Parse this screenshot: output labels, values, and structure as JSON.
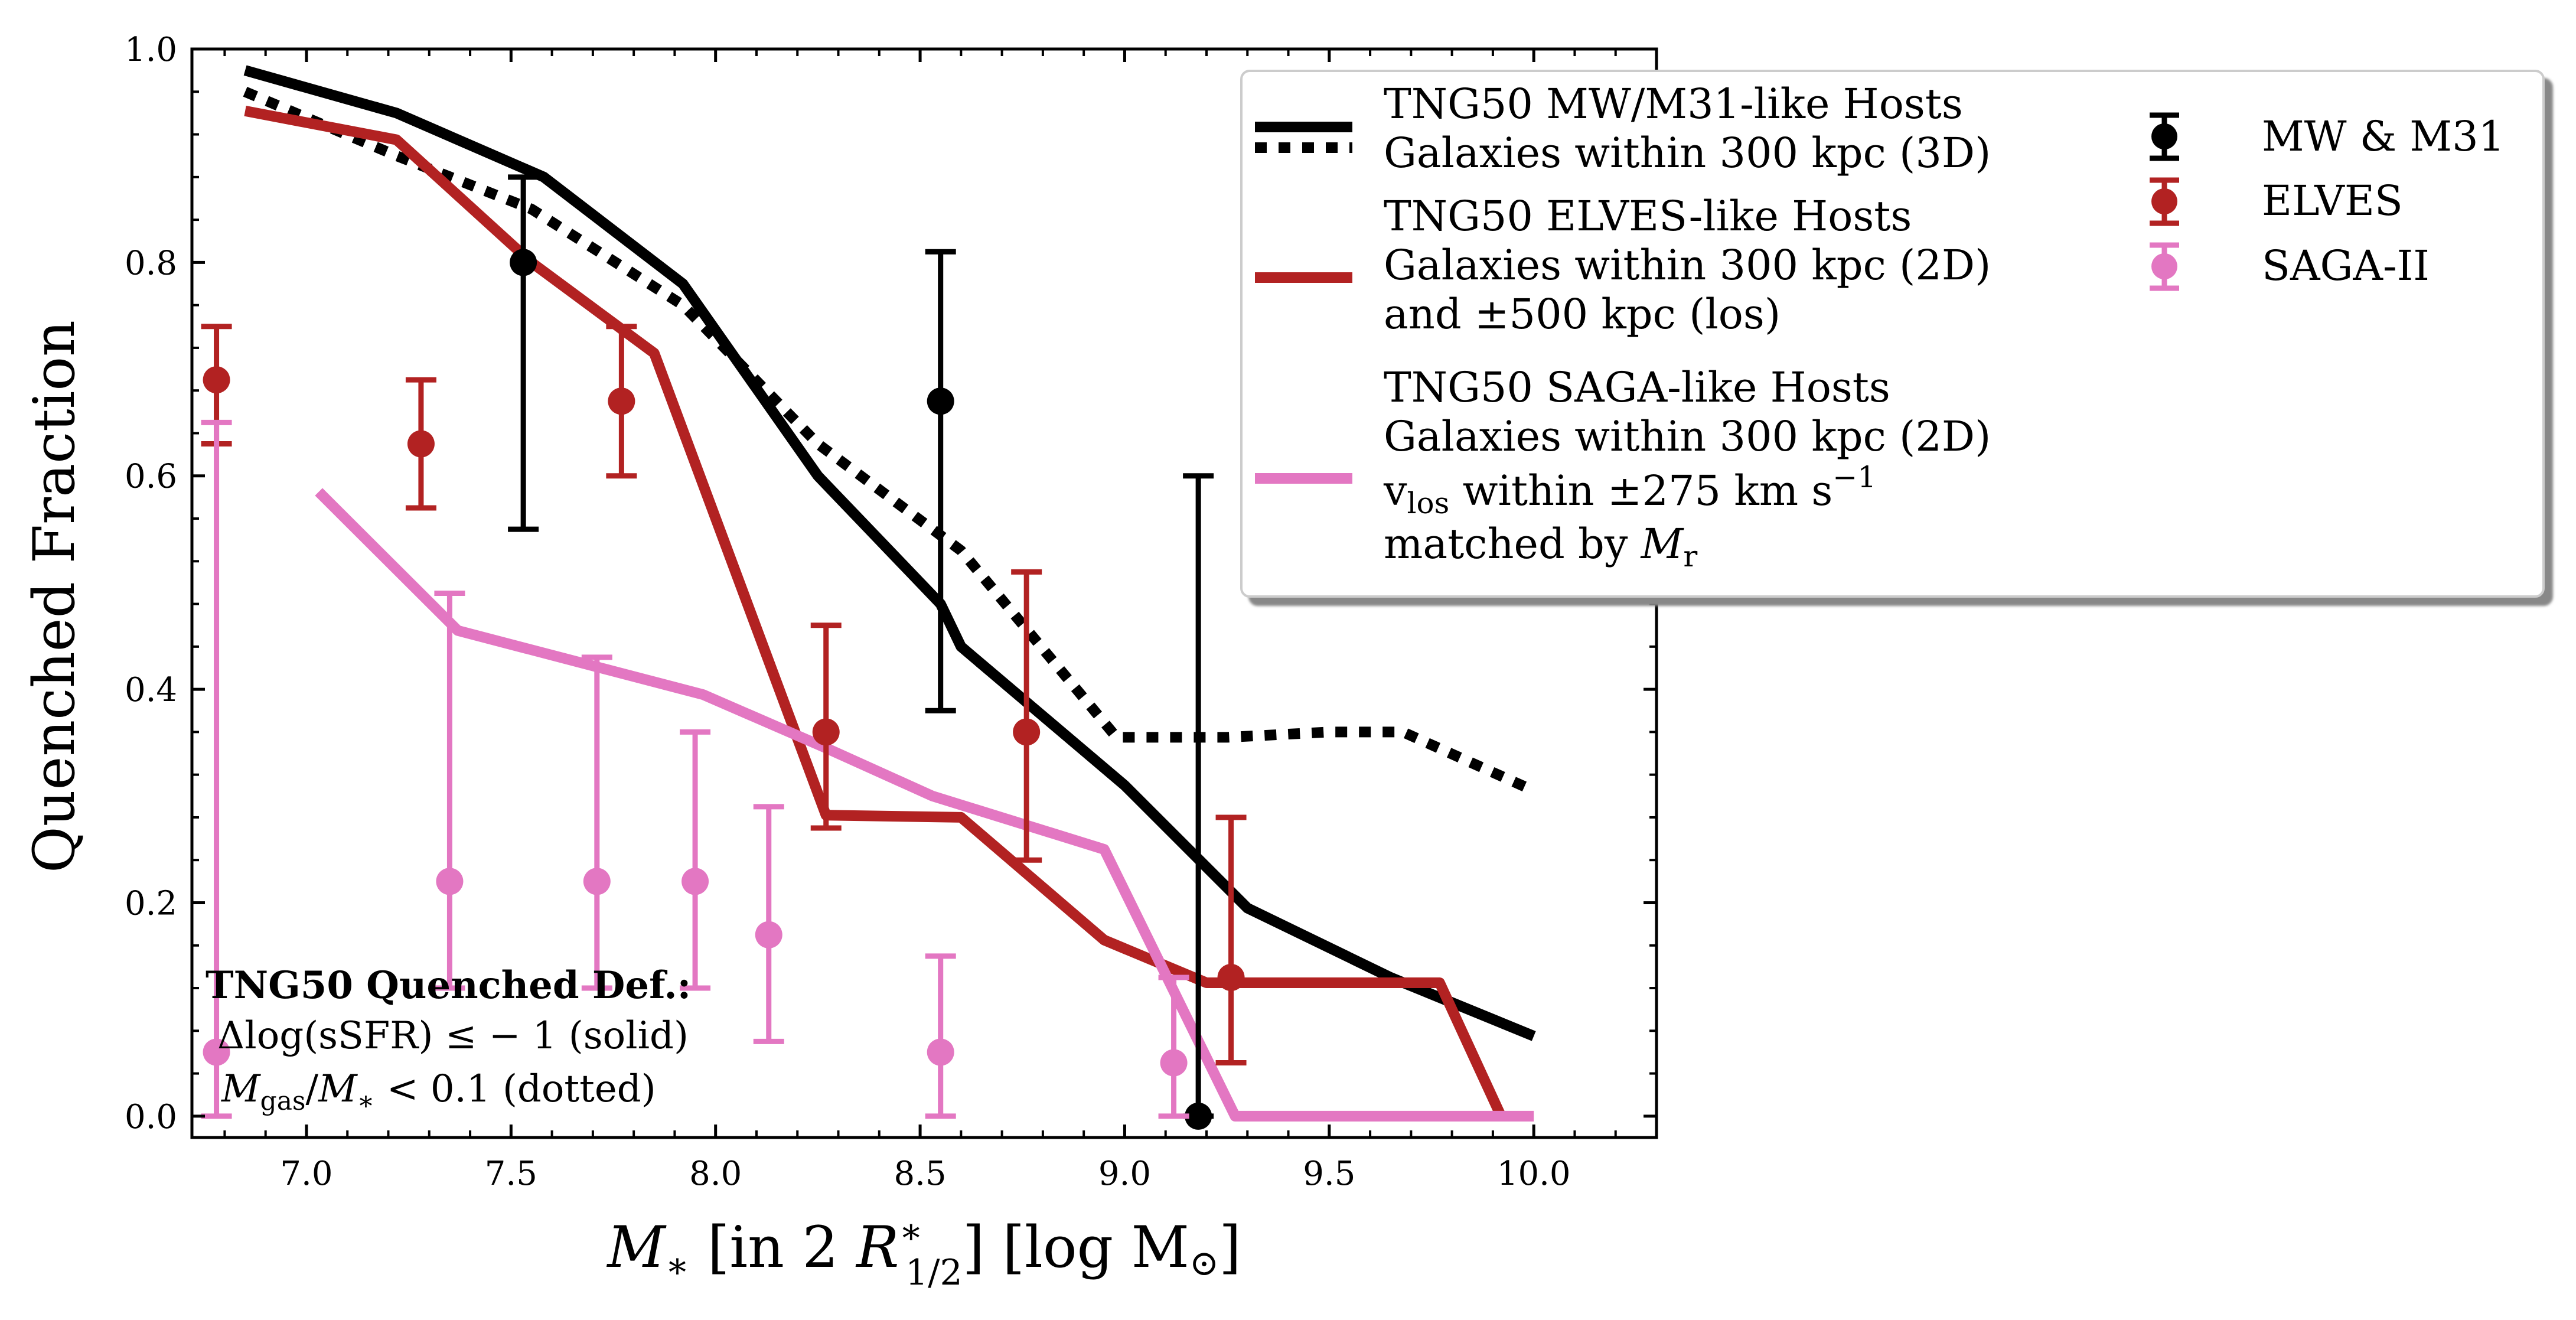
{
  "chart_data": {
    "type": "line",
    "xlabel": "M_* [in 2 R*_1/2] [log M_⊙]",
    "ylabel": "Quenched Fraction",
    "xlim": [
      6.72,
      10.3
    ],
    "ylim": [
      -0.02,
      1.0
    ],
    "x_ticks": [
      7.0,
      7.5,
      8.0,
      8.5,
      9.0,
      9.5,
      10.0
    ],
    "x_tick_labels": [
      "7.0",
      "7.5",
      "8.0",
      "8.5",
      "9.0",
      "9.5",
      "10.0"
    ],
    "y_ticks": [
      0.0,
      0.2,
      0.4,
      0.6,
      0.8,
      1.0
    ],
    "y_tick_labels": [
      "0.0",
      "0.2",
      "0.4",
      "0.6",
      "0.8",
      "1.0"
    ],
    "grid": false,
    "legend_placement": "top-right outside",
    "colors": {
      "black": "#000000",
      "red": "#b22222",
      "pink": "#e377c2"
    },
    "lines": [
      {
        "id": "mw-solid",
        "color": "#000000",
        "style": "solid",
        "x": [
          6.85,
          7.22,
          7.58,
          7.92,
          8.25,
          8.55,
          8.6,
          9.0,
          9.3,
          9.65,
          10.0
        ],
        "y": [
          0.98,
          0.94,
          0.88,
          0.78,
          0.6,
          0.48,
          0.44,
          0.31,
          0.195,
          0.13,
          0.075
        ]
      },
      {
        "id": "mw-dotted",
        "color": "#000000",
        "style": "dotted",
        "x": [
          6.85,
          7.22,
          7.55,
          7.92,
          8.25,
          8.6,
          8.98,
          9.25,
          9.5,
          9.68,
          10.0
        ],
        "y": [
          0.96,
          0.9,
          0.85,
          0.76,
          0.63,
          0.53,
          0.355,
          0.355,
          0.36,
          0.36,
          0.305
        ]
      },
      {
        "id": "elves",
        "color": "#b22222",
        "style": "solid",
        "x": [
          6.85,
          7.22,
          7.55,
          7.85,
          8.27,
          8.6,
          8.95,
          9.2,
          9.77,
          9.92
        ],
        "y": [
          0.942,
          0.915,
          0.8,
          0.715,
          0.282,
          0.28,
          0.165,
          0.125,
          0.125,
          0.0
        ]
      },
      {
        "id": "saga",
        "color": "#e377c2",
        "style": "solid",
        "x": [
          7.03,
          7.37,
          7.97,
          8.27,
          8.53,
          8.95,
          9.27,
          10.0
        ],
        "y": [
          0.585,
          0.455,
          0.395,
          0.345,
          0.3,
          0.25,
          0.0,
          0.0
        ]
      }
    ],
    "points": [
      {
        "id": "mw-m31",
        "color": "#000000",
        "x": [
          7.53,
          8.55,
          9.18
        ],
        "y": [
          0.8,
          0.67,
          0.0
        ],
        "err_low": [
          0.55,
          0.38,
          0.0
        ],
        "err_high": [
          0.88,
          0.81,
          0.6
        ]
      },
      {
        "id": "elves-pts",
        "color": "#b22222",
        "x": [
          6.78,
          7.28,
          7.77,
          8.27,
          8.76,
          9.26
        ],
        "y": [
          0.69,
          0.63,
          0.67,
          0.36,
          0.36,
          0.13
        ],
        "err_low": [
          0.63,
          0.57,
          0.6,
          0.27,
          0.24,
          0.05
        ],
        "err_high": [
          0.74,
          0.69,
          0.74,
          0.46,
          0.51,
          0.28
        ]
      },
      {
        "id": "saga-pts",
        "color": "#e377c2",
        "x": [
          6.78,
          7.35,
          7.71,
          7.95,
          8.13,
          8.55,
          9.12
        ],
        "y": [
          0.06,
          0.22,
          0.22,
          0.22,
          0.17,
          0.06,
          0.05
        ],
        "err_low": [
          0.0,
          0.12,
          0.12,
          0.12,
          0.07,
          0.0,
          0.0
        ],
        "err_high": [
          0.65,
          0.49,
          0.43,
          0.36,
          0.29,
          0.15,
          0.13
        ]
      }
    ]
  },
  "legend": {
    "mw_line1": "TNG50 MW/M31-like Hosts",
    "mw_line2": "Galaxies within 300 kpc (3D)",
    "elves_line1": "TNG50 ELVES-like Hosts",
    "elves_line2": "Galaxies within 300 kpc (2D)",
    "elves_line3": "and ±500 kpc (los)",
    "saga_line1": "TNG50 SAGA-like Hosts",
    "saga_line2": "Galaxies within 300 kpc (2D)",
    "saga_line3_v": "v",
    "saga_line3_sub": "los",
    "saga_line3_rest": " within ±275 km s",
    "saga_line3_sup": "−1",
    "saga_line4": "matched by ",
    "saga_line4_m": "M",
    "saga_line4_sub": "r",
    "pts_mw": "MW & M31",
    "pts_elves": "ELVES",
    "pts_saga": "SAGA-II"
  },
  "note": {
    "title": "TNG50 Quenched Def.:",
    "line1": "Δlog(sSFR) ≤ − 1 (solid)",
    "line2_m": "M",
    "line2_sub1": "gas",
    "line2_slash": "/",
    "line2_m2": "M",
    "line2_sub2": "∗",
    "line2_rest": " < 0.1 (dotted)"
  },
  "axes_text": {
    "ylabel": "Quenched Fraction",
    "x_m": "M",
    "x_sub": "∗",
    "x_mid": " [in 2 ",
    "x_r": "R",
    "x_sup": "∗",
    "x_sub2": "1/2",
    "x_end": "] [log M",
    "x_sun": "⊙",
    "x_close": "]"
  }
}
